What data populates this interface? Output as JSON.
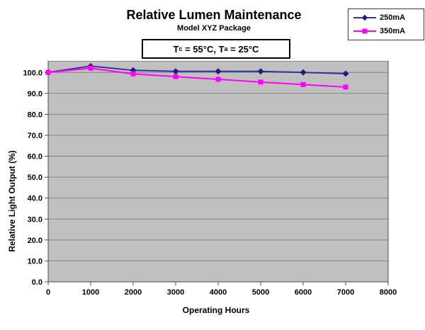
{
  "title": "Relative Lumen Maintenance",
  "subtitle": "Model XYZ Package",
  "condition": {
    "p1": "T",
    "s1": "c",
    "p2": " = 55°C, T",
    "s2": "a",
    "p3": " = 25°C"
  },
  "legend": {
    "position": "top-right",
    "items": [
      {
        "label": "250mA",
        "marker": "diamond",
        "color": "#1f1f7a"
      },
      {
        "label": "350mA",
        "marker": "square",
        "color": "#ff00ff"
      }
    ]
  },
  "chart_data": {
    "type": "line",
    "title": "Relative Lumen Maintenance",
    "subtitle": "Model XYZ Package",
    "annotation": "Tc = 55°C, Ta = 25°C",
    "xlabel": "Operating Hours",
    "ylabel": "Relative Light Output (%)",
    "x": [
      0,
      1000,
      2000,
      3000,
      4000,
      5000,
      6000,
      7000
    ],
    "series": [
      {
        "name": "250mA",
        "marker": "diamond",
        "line_color": "#3333a0",
        "marker_color": "#1f1f7a",
        "values": [
          100.0,
          103.0,
          101.0,
          100.5,
          100.5,
          100.5,
          100.0,
          99.4
        ]
      },
      {
        "name": "350mA",
        "marker": "square",
        "line_color": "#ff00ff",
        "marker_color": "#ff00ff",
        "values": [
          100.0,
          102.0,
          99.3,
          98.0,
          96.7,
          95.4,
          94.2,
          93.0
        ]
      }
    ],
    "xlim": [
      0,
      8000
    ],
    "ylim": [
      0,
      105.5
    ],
    "xticks": [
      0,
      1000,
      2000,
      3000,
      4000,
      5000,
      6000,
      7000,
      8000
    ],
    "yticks": [
      0,
      10,
      20,
      30,
      40,
      50,
      60,
      70,
      80,
      90,
      100
    ],
    "ytick_format": "one_decimal",
    "grid": true,
    "plot_bg": "#c0c0c0",
    "gridline_color": "#848484",
    "plot_border_color": "#4d4d4d",
    "tick_label_color": "#000000"
  }
}
